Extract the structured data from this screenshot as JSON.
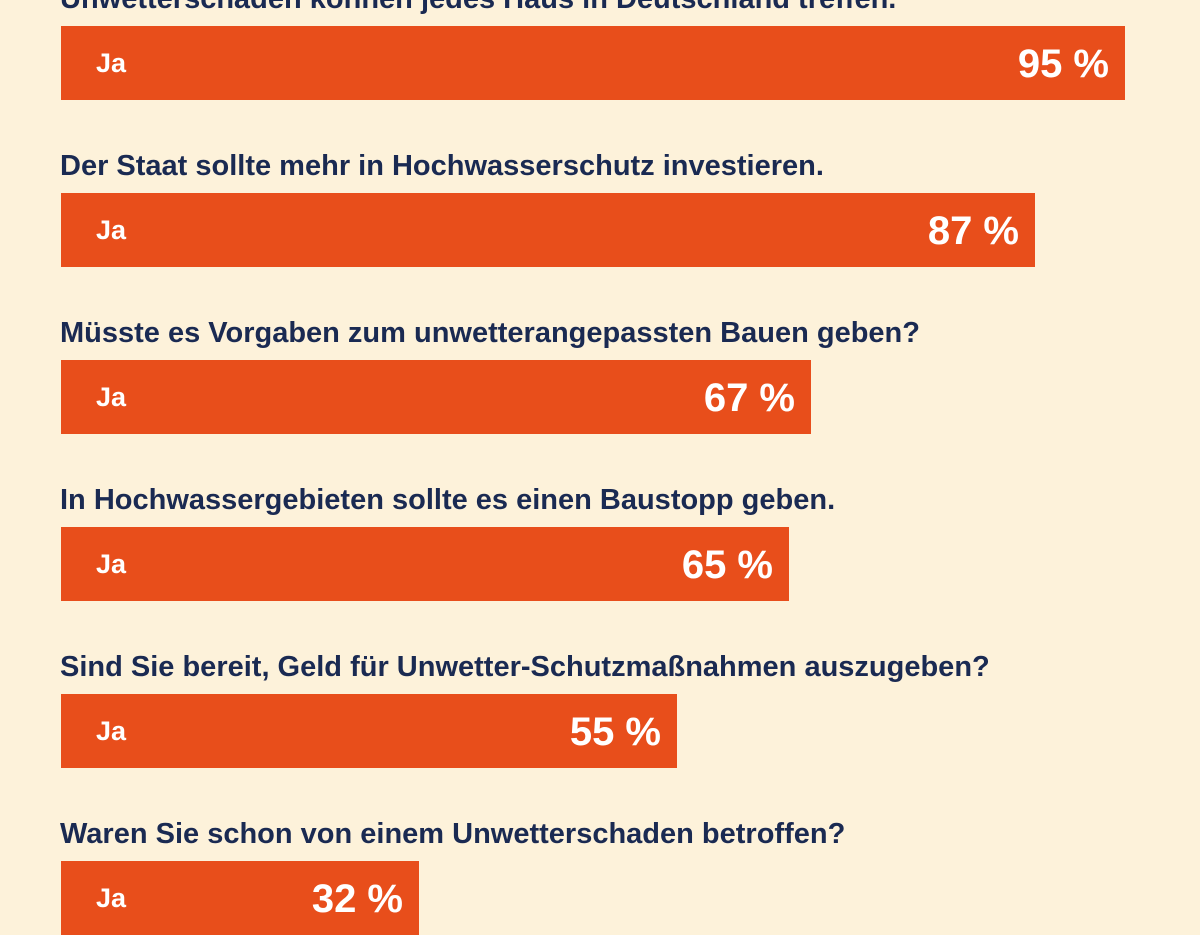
{
  "chart_data": {
    "type": "bar",
    "orientation": "horizontal",
    "unit": "%",
    "answer_label": "Ja",
    "xlim": [
      0,
      100
    ],
    "grid": false,
    "legend": "none",
    "colors": {
      "background": "#fdf2da",
      "bar": "#e84e1b",
      "question_text": "#1a2a52",
      "bar_text": "#ffffff"
    },
    "categories": [
      "Unwetterschäden können jedes Haus in Deutschland treffen.",
      "Der Staat sollte mehr in Hochwasserschutz investieren.",
      "Müsste es Vorgaben zum unwetterangepassten Bauen geben?",
      "In Hochwassergebieten sollte es einen Baustopp geben.",
      "Sind Sie bereit, Geld für Unwetter-Schutzmaßnahmen auszugeben?",
      "Waren Sie schon von einem Unwetterschaden betroffen?"
    ],
    "values": [
      95,
      87,
      67,
      65,
      55,
      32
    ]
  }
}
